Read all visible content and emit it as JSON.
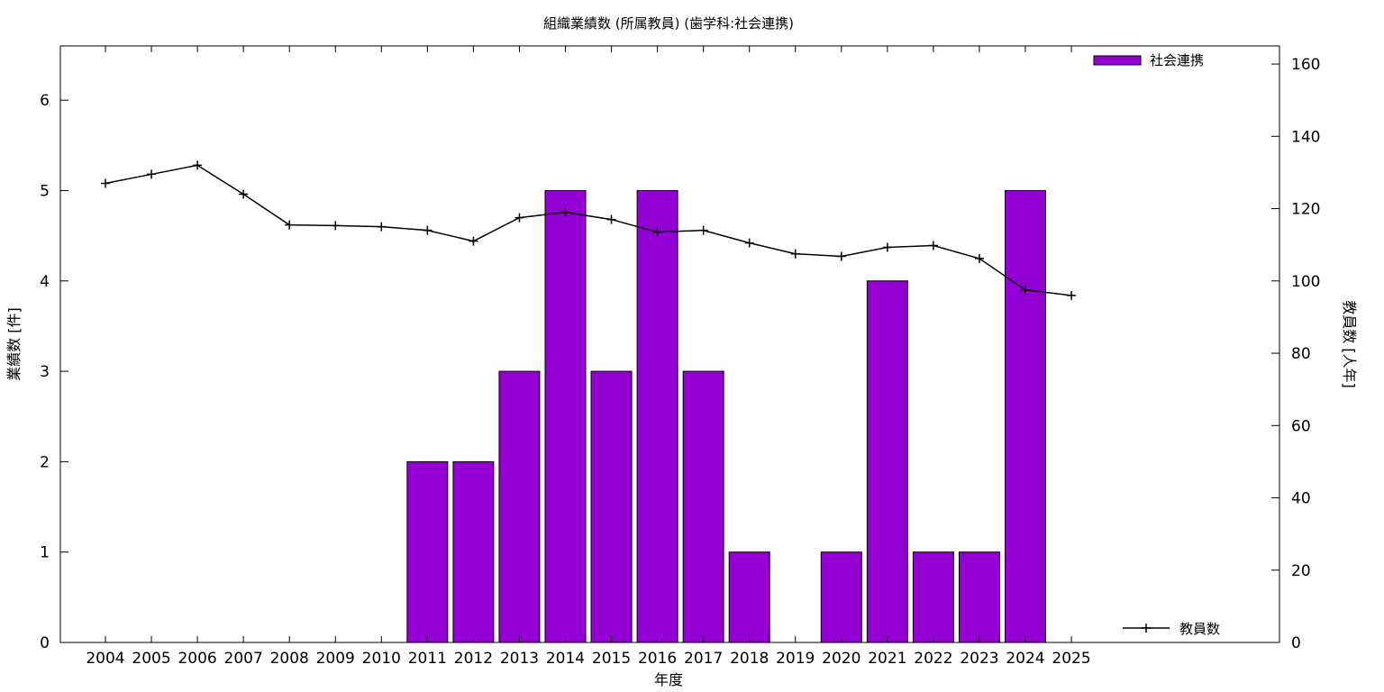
{
  "chart_data": {
    "type": "bar",
    "title": "組織業績数 (所属教員) (歯学科:社会連携)",
    "xlabel": "年度",
    "ylabel": "業績数 [件]",
    "y2label": "教員数 [人年]",
    "categories": [
      "2004",
      "2005",
      "2006",
      "2007",
      "2008",
      "2009",
      "2010",
      "2011",
      "2012",
      "2013",
      "2014",
      "2015",
      "2016",
      "2017",
      "2018",
      "2019",
      "2020",
      "2021",
      "2022",
      "2023",
      "2024",
      "2025"
    ],
    "ylim": [
      0,
      6.6
    ],
    "y2lim": [
      0,
      165
    ],
    "yticks": [
      0,
      1,
      2,
      3,
      4,
      5,
      6
    ],
    "y2ticks": [
      0,
      20,
      40,
      60,
      80,
      100,
      120,
      140,
      160
    ],
    "grid": false,
    "series": [
      {
        "name": "社会連携",
        "type": "bar",
        "axis": "left",
        "color": "#9400d3",
        "values": [
          0,
          0,
          0,
          0,
          0,
          0,
          0,
          2,
          2,
          3,
          5,
          3,
          5,
          3,
          1,
          0,
          1,
          4,
          1,
          1,
          5,
          0
        ]
      },
      {
        "name": "教員数",
        "type": "line",
        "axis": "right",
        "color": "#000000",
        "values": [
          127,
          129.5,
          132,
          124,
          115.5,
          115.3,
          115,
          114,
          111,
          117.5,
          119,
          117,
          113.5,
          114,
          110.5,
          107.5,
          106.8,
          109.3,
          109.8,
          106.2,
          97.5,
          96
        ]
      }
    ],
    "legend": [
      {
        "label": "社会連携",
        "placement": "top-right",
        "marker": "bar"
      },
      {
        "label": "教員数",
        "placement": "bottom-right",
        "marker": "line"
      }
    ]
  }
}
